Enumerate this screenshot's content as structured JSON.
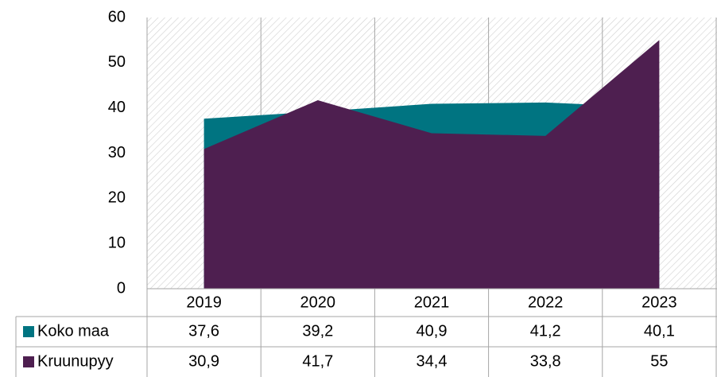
{
  "chart_data": {
    "type": "area",
    "categories": [
      "2019",
      "2020",
      "2021",
      "2022",
      "2023"
    ],
    "series": [
      {
        "name": "Koko maa",
        "color": "#007481",
        "values": [
          37.6,
          39.2,
          40.9,
          41.2,
          40.1
        ],
        "value_labels": [
          "37,6",
          "39,2",
          "40,9",
          "41,2",
          "40,1"
        ]
      },
      {
        "name": "Kruunupyy",
        "color": "#4e1f50",
        "values": [
          30.9,
          41.7,
          34.4,
          33.8,
          55
        ],
        "value_labels": [
          "30,9",
          "41,7",
          "34,4",
          "33,8",
          "55"
        ]
      }
    ],
    "ylim": [
      0,
      60
    ],
    "yticks": [
      0,
      10,
      20,
      30,
      40,
      50,
      60
    ]
  }
}
